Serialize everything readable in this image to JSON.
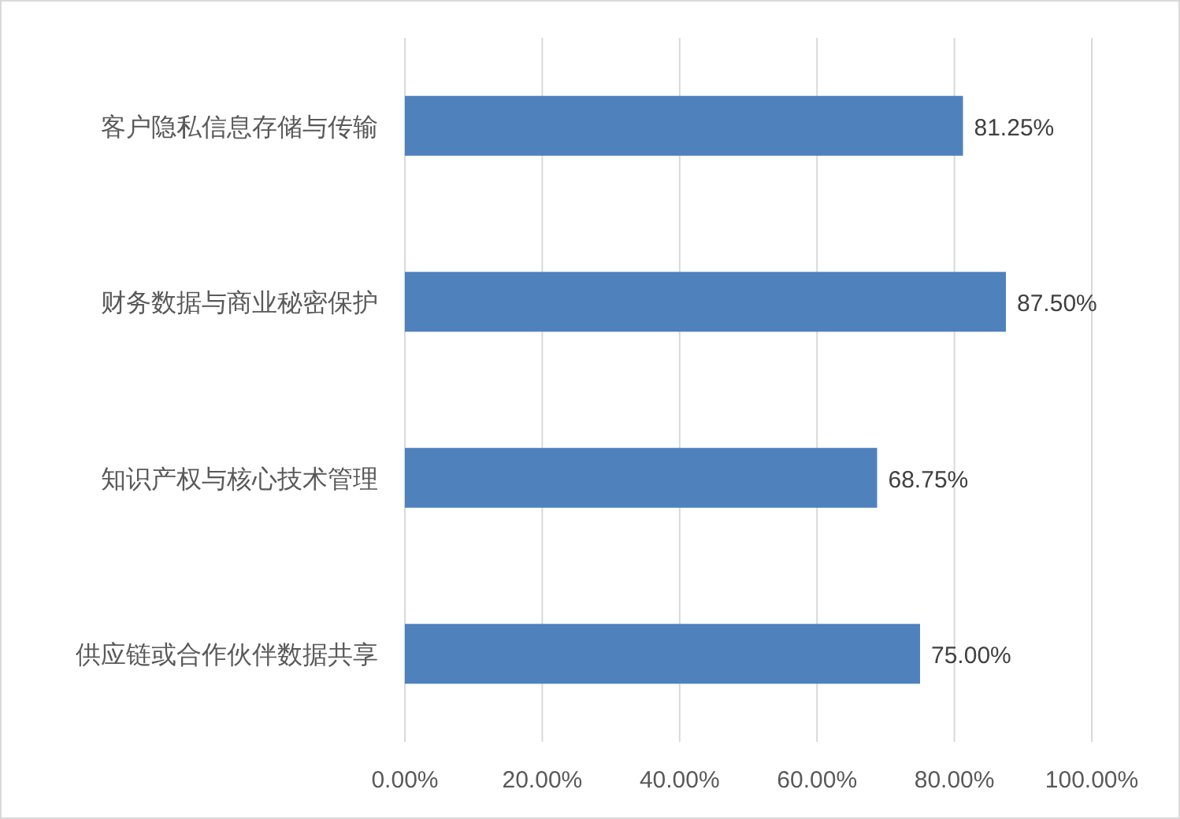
{
  "chart_data": {
    "type": "bar",
    "orientation": "horizontal",
    "categories": [
      "客户隐私信息存储与传输",
      "财务数据与商业秘密保护",
      "知识产权与核心技术管理",
      "供应链或合作伙伴数据共享"
    ],
    "values": [
      81.25,
      87.5,
      68.75,
      75
    ],
    "value_labels": [
      "81.25%",
      "87.50%",
      "68.75%",
      "75.00%"
    ],
    "color": "#4f81bd",
    "xlim": [
      0,
      100
    ],
    "xticks": [
      {
        "value": 0,
        "label": "0.00%"
      },
      {
        "value": 20,
        "label": "20.00%"
      },
      {
        "value": 40,
        "label": "40.00%"
      },
      {
        "value": 60,
        "label": "60.00%"
      },
      {
        "value": 80,
        "label": "80.00%"
      },
      {
        "value": 100,
        "label": "100.00%"
      }
    ],
    "grid": "x"
  }
}
